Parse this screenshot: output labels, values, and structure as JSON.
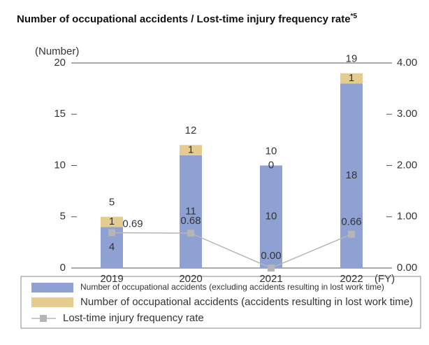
{
  "chart_data": {
    "type": "stacked_bar_line",
    "title": "Number of occupational accidents / Lost-time injury frequency rate",
    "title_note": "*5",
    "y_label": "(Number)",
    "x_label": "(FY)",
    "categories": [
      "2019",
      "2020",
      "2021",
      "2022"
    ],
    "series": [
      {
        "name": "Number of occupational accidents (excluding accidents resulting in lost work time)",
        "color": "#8fa0d3",
        "values": [
          4,
          11,
          10,
          18
        ]
      },
      {
        "name": "Number of occupational accidents (accidents resulting in lost work time)",
        "color": "#e3cc8e",
        "values": [
          1,
          1,
          0,
          1
        ]
      },
      {
        "name": "Lost-time injury frequency rate",
        "color": "#b5b5b5",
        "axis": "y2",
        "type": "line",
        "values": [
          0.69,
          0.68,
          0,
          0.66
        ],
        "value_labels": [
          "0.69",
          "0.68",
          "0.00",
          "0.66"
        ]
      }
    ],
    "totals": [
      5,
      12,
      10,
      19
    ],
    "ylim": [
      0,
      20
    ],
    "yticks": [
      0,
      5,
      10,
      15,
      20
    ],
    "y2lim": [
      0,
      4
    ],
    "y2ticks": [
      {
        "value": 0,
        "label": "0.00"
      },
      {
        "value": 1,
        "label": "1.00"
      },
      {
        "value": 2,
        "label": "2.00"
      },
      {
        "value": 3,
        "label": "3.00"
      },
      {
        "value": 4,
        "label": "4.00"
      }
    ]
  }
}
